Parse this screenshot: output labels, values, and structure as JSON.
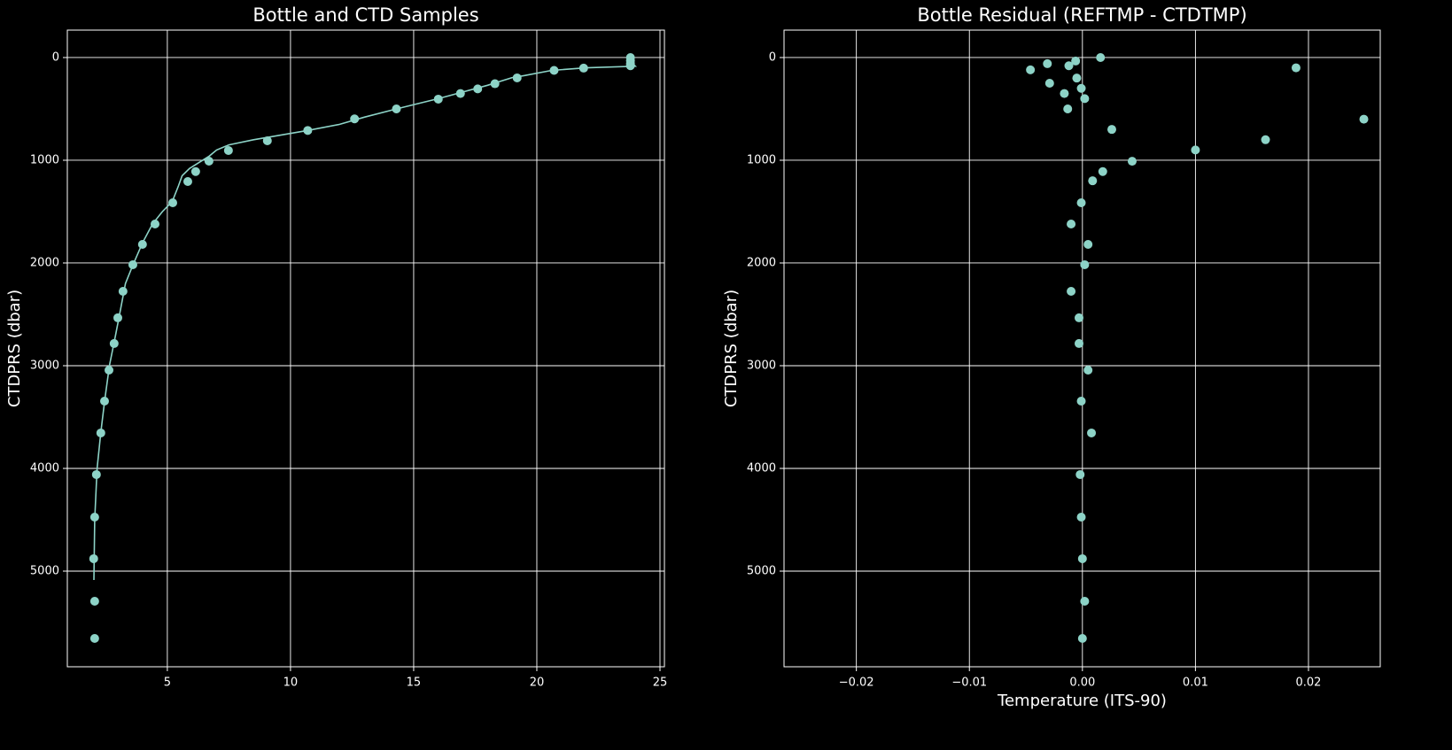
{
  "chart_data": [
    {
      "type": "scatter",
      "title": "Bottle and CTD Samples",
      "ylabel": "CTDPRS (dbar)",
      "xlim": [
        0.94,
        25.18
      ],
      "ylim": [
        5931,
        -267
      ],
      "xticks": [
        5,
        10,
        15,
        20,
        25
      ],
      "yticks": [
        0,
        1000,
        2000,
        3000,
        4000,
        5000
      ],
      "grid": true,
      "series": [
        {
          "type": "line",
          "color": "#8dd3c7",
          "x": [
            23.7,
            23.9,
            24.0,
            22.0,
            20.6,
            19.5,
            19.0,
            18.0,
            16.0,
            14.3,
            13.0,
            12.0,
            10.7,
            9.5,
            8.5,
            7.5,
            7.0,
            6.7,
            6.3,
            5.9,
            5.6,
            5.45,
            5.2,
            4.8,
            4.4,
            4.0,
            3.6,
            3.3,
            3.1,
            2.9,
            2.65,
            2.45,
            2.3,
            2.15,
            2.05,
            2.02
          ],
          "values": [
            10,
            60,
            85,
            100,
            125,
            175,
            195,
            270,
            400,
            500,
            580,
            650,
            710,
            760,
            800,
            850,
            900,
            960,
            1020,
            1080,
            1150,
            1250,
            1400,
            1500,
            1620,
            1800,
            2020,
            2200,
            2450,
            2700,
            3000,
            3350,
            3650,
            4000,
            4500,
            5086
          ]
        },
        {
          "type": "scatter",
          "color": "#8dd3c7",
          "x": [
            23.8,
            23.8,
            23.8,
            23.8,
            21.9,
            20.7,
            19.2,
            18.3,
            17.6,
            16.9,
            16.0,
            14.3,
            12.6,
            10.7,
            9.06,
            7.48,
            6.69,
            6.15,
            5.83,
            5.22,
            4.5,
            3.99,
            3.6,
            3.2,
            2.99,
            2.84,
            2.63,
            2.45,
            2.3,
            2.12,
            2.05,
            2.01,
            2.05,
            2.05
          ],
          "values": [
            0,
            30,
            60,
            80,
            103,
            125,
            198,
            255,
            305,
            350,
            405,
            500,
            597,
            710,
            810,
            905,
            1009,
            1110,
            1207,
            1414,
            1621,
            1819,
            2017,
            2276,
            2534,
            2784,
            3043,
            3345,
            3655,
            4060,
            4474,
            4879,
            5293,
            5655
          ]
        }
      ]
    },
    {
      "type": "scatter",
      "title": "Bottle Residual (REFTMP - CTDTMP)",
      "ylabel": "CTDPRS (dbar)",
      "xlabel": "Temperature (ITS-90)",
      "xlim": [
        -0.0264,
        0.02635
      ],
      "ylim": [
        5931,
        -267
      ],
      "xticks": [
        {
          "value": -0.02,
          "label": "−0.02"
        },
        {
          "value": -0.01,
          "label": "−0.01"
        },
        {
          "value": 0,
          "label": "0.00"
        },
        0.01,
        0.02
      ],
      "yticks": [
        0,
        1000,
        2000,
        3000,
        4000,
        5000
      ],
      "grid": true,
      "series": [
        {
          "type": "scatter",
          "color": "#8dd3c7",
          "x": [
            0.0016,
            -0.0006,
            -0.0031,
            -0.0012,
            0.0189,
            -0.0046,
            -0.0005,
            -0.0029,
            -0.0001,
            -0.0016,
            0.0002,
            -0.0013,
            0.0249,
            0.0026,
            0.0162,
            0.01,
            0.0044,
            0.0018,
            0.0009,
            -0.0001,
            -0.001,
            0.0005,
            0.0002,
            -0.001,
            -0.0003,
            -0.0003,
            0.0005,
            -0.0001,
            0.0008,
            -0.0002,
            -0.0001,
            0.0,
            0.0002,
            0.0
          ],
          "values": [
            0,
            34,
            60,
            80,
            100,
            120,
            200,
            250,
            300,
            350,
            400,
            500,
            600,
            700,
            800,
            900,
            1010,
            1110,
            1200,
            1414,
            1621,
            1819,
            2017,
            2276,
            2534,
            2784,
            3043,
            3345,
            3655,
            4060,
            4474,
            4879,
            5293,
            5655
          ]
        }
      ]
    }
  ]
}
